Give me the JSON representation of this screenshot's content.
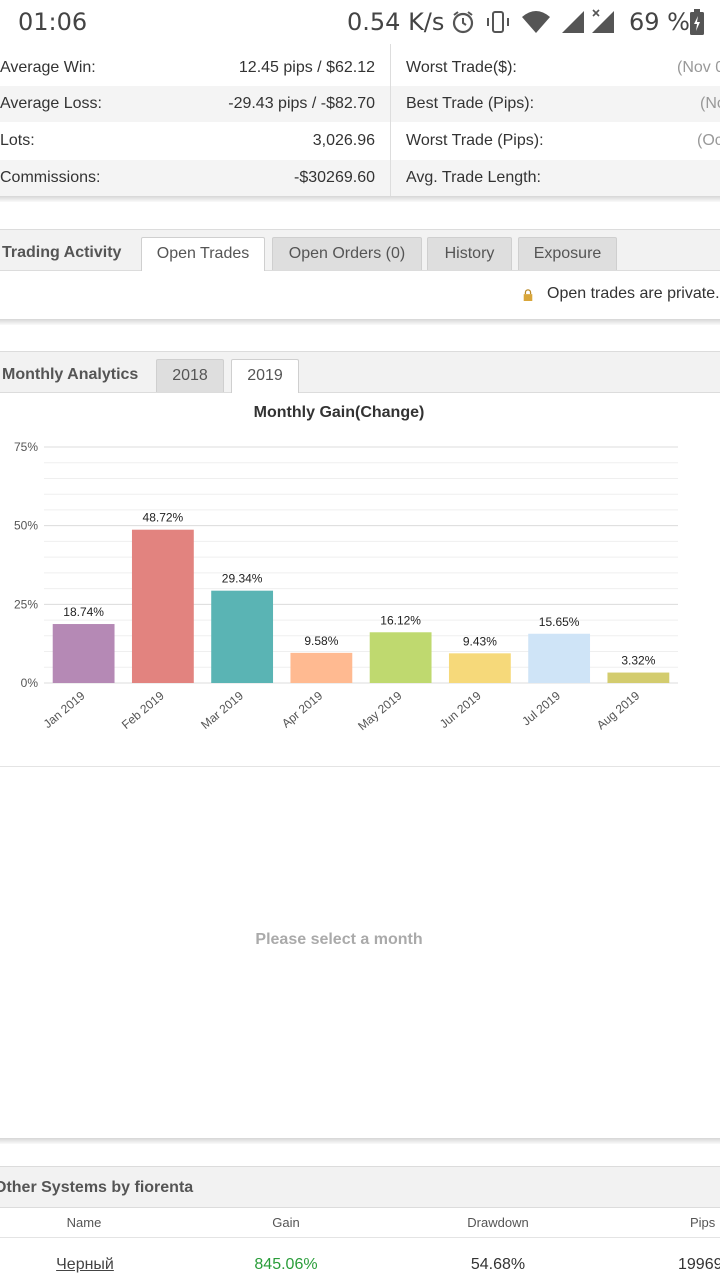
{
  "status_bar": {
    "time": "01:06",
    "speed": "0.54 K/s",
    "battery": "69 %"
  },
  "stats": {
    "left": [
      {
        "label": "Average Win:",
        "value": "12.45 pips / $62.12"
      },
      {
        "label": "Average Loss:",
        "value": "-29.43 pips / -$82.70"
      },
      {
        "label": "Lots:",
        "value": "3,026.96"
      },
      {
        "label": "Commissions:",
        "value": "-$30269.60"
      }
    ],
    "right": [
      {
        "label": "Worst Trade($):",
        "value": "(Nov 0"
      },
      {
        "label": "Best Trade (Pips):",
        "value": "(No"
      },
      {
        "label": "Worst Trade (Pips):",
        "value": "(Oc"
      },
      {
        "label": "Avg. Trade Length:",
        "value": ""
      }
    ]
  },
  "trading_activity": {
    "title": "Trading Activity",
    "tabs": [
      "Open Trades",
      "Open Orders (0)",
      "History",
      "Exposure"
    ],
    "active_tab": "Open Trades",
    "message": "Open trades are private."
  },
  "monthly_analytics": {
    "title": "Monthly Analytics",
    "tabs": [
      "2018",
      "2019"
    ],
    "active_tab": "2019",
    "empty_message": "Please select a month"
  },
  "chart_data": {
    "type": "bar",
    "title": "Monthly Gain(Change)",
    "xlabel": "",
    "ylabel": "",
    "categories": [
      "Jan 2019",
      "Feb 2019",
      "Mar 2019",
      "Apr 2019",
      "May 2019",
      "Jun 2019",
      "Jul 2019",
      "Aug 2019"
    ],
    "values": [
      18.74,
      48.72,
      29.34,
      9.58,
      16.12,
      9.43,
      15.65,
      3.32
    ],
    "value_labels": [
      "18.74%",
      "48.72%",
      "29.34%",
      "9.58%",
      "16.12%",
      "9.43%",
      "15.65%",
      "3.32%"
    ],
    "colors": [
      "#b589b5",
      "#e2837f",
      "#5ab4b4",
      "#ffba91",
      "#bfd96f",
      "#f6d97a",
      "#cfe4f7",
      "#d3cc6e"
    ],
    "ylim": [
      0,
      75
    ],
    "yticks": [
      0,
      25,
      50,
      75
    ],
    "ytick_labels": [
      "0%",
      "25%",
      "50%",
      "75%"
    ],
    "grid": true,
    "legend": "none"
  },
  "other_systems": {
    "title": "Other Systems by fiorenta",
    "columns": [
      "Name",
      "Gain",
      "Drawdown",
      "Pips"
    ],
    "rows": [
      {
        "name": "Черный",
        "gain": "845.06%",
        "drawdown": "54.68%",
        "pips": "19969"
      }
    ]
  },
  "colors": {
    "gain_positive": "#2a9d3a",
    "panel_header": "#f2f2f2",
    "muted_text": "#aaaaaa"
  }
}
